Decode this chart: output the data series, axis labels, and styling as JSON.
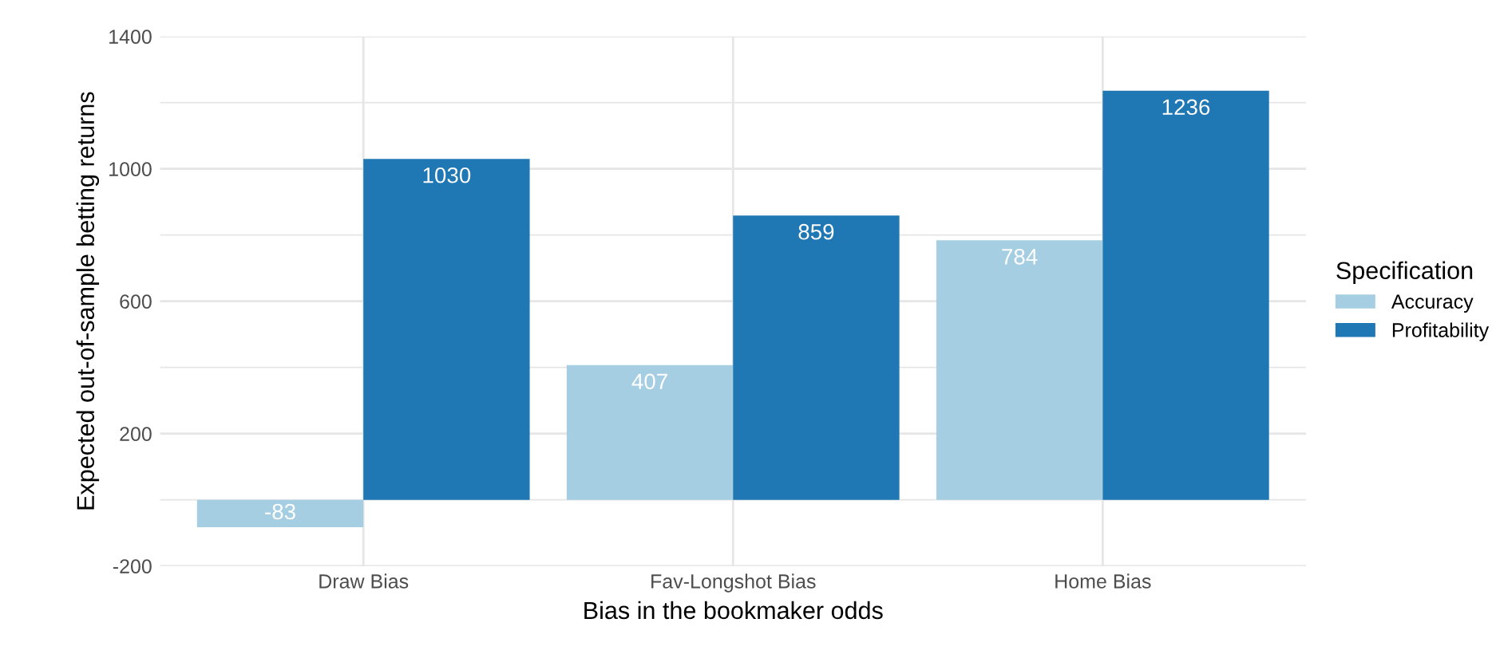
{
  "chart_data": {
    "type": "bar",
    "xlabel": "Bias in the bookmaker odds",
    "ylabel": "Expected out-of-sample betting returns",
    "legend_title": "Specification",
    "categories": [
      "Draw Bias",
      "Fav-Longshot Bias",
      "Home Bias"
    ],
    "series": [
      {
        "name": "Accuracy",
        "color": "#a6cee3",
        "values": [
          -83,
          407,
          784
        ]
      },
      {
        "name": "Profitability",
        "color": "#1f78b4",
        "values": [
          1030,
          859,
          1236
        ]
      }
    ],
    "ylim": [
      -200,
      1400
    ],
    "yticks": [
      -200,
      200,
      600,
      1000,
      1400
    ],
    "grid": true,
    "legend": "right",
    "data_labels": true
  }
}
